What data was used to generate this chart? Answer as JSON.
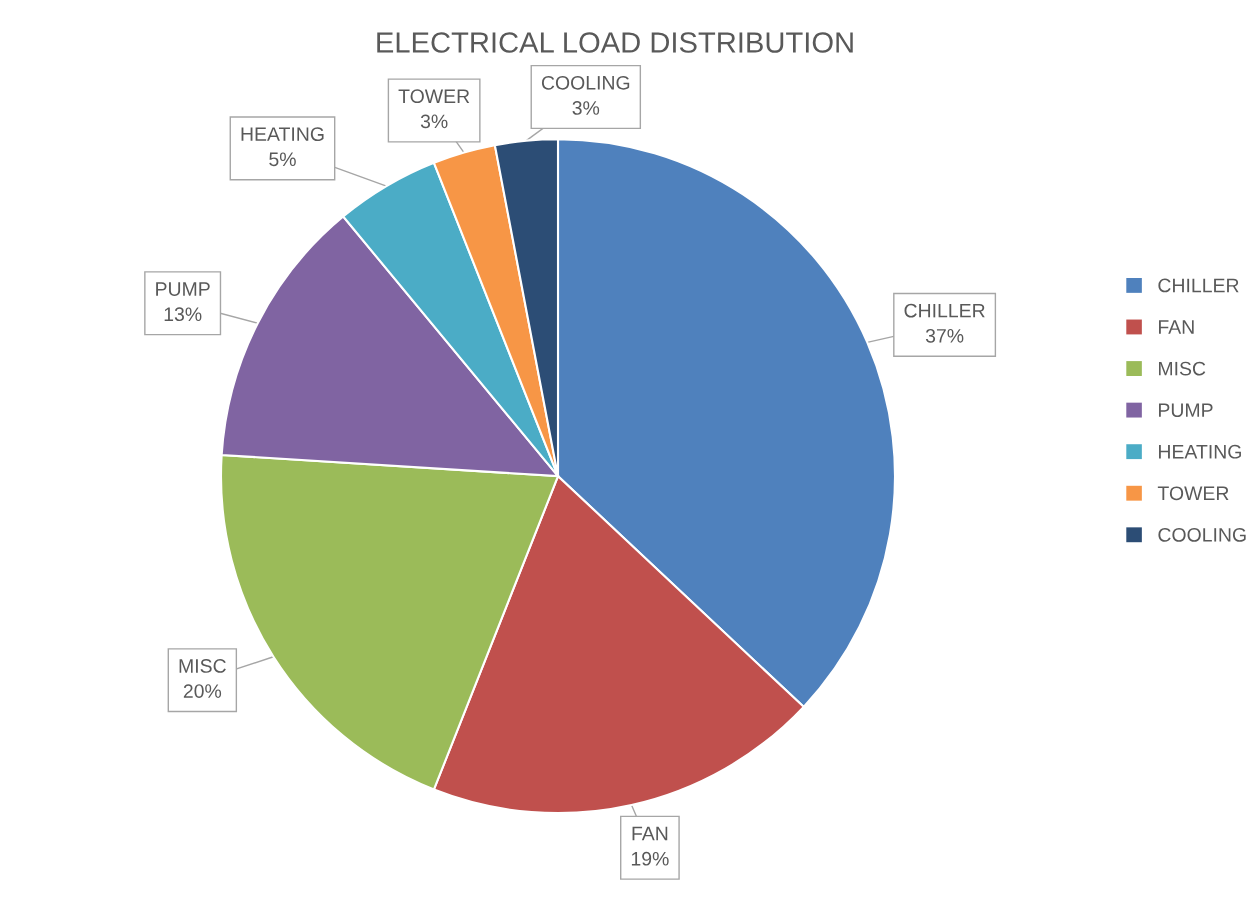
{
  "chart_data": {
    "type": "pie",
    "title": "ELECTRICAL LOAD DISTRIBUTION",
    "categories": [
      "CHILLER",
      "FAN",
      "MISC",
      "PUMP",
      "HEATING",
      "TOWER",
      "COOLING"
    ],
    "values": [
      37,
      19,
      20,
      13,
      5,
      3,
      3
    ],
    "value_labels": [
      "37%",
      "19%",
      "20%",
      "13%",
      "5%",
      "3%",
      "3%"
    ],
    "colors": [
      "#4f81bd",
      "#c0504d",
      "#9bbb59",
      "#8064a2",
      "#4bacc6",
      "#f79646",
      "#2c4d75"
    ],
    "legend": "right"
  }
}
